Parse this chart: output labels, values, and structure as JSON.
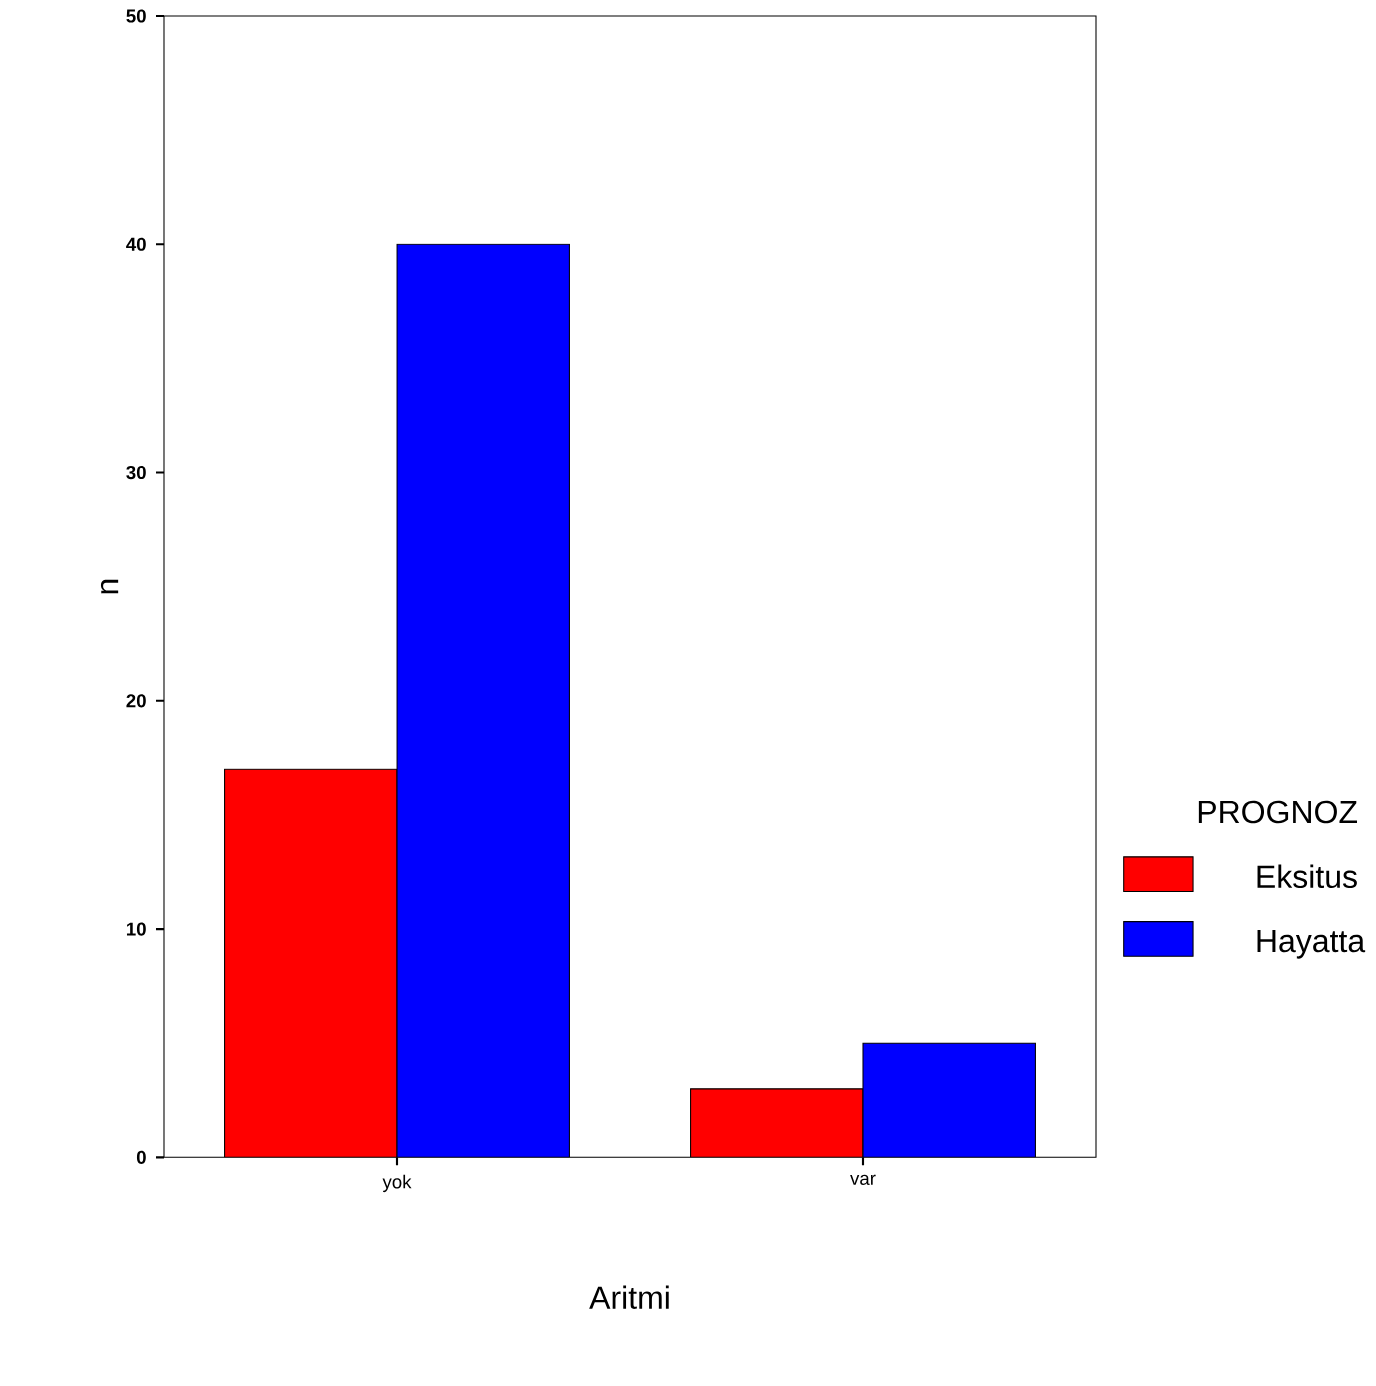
{
  "chart_data": {
    "type": "bar",
    "xlabel": "Aritmi",
    "ylabel": "n",
    "legend_title": "PROGNOZ",
    "legend": "right",
    "categories": [
      "yok",
      "var"
    ],
    "series": [
      {
        "name": "Eksitus",
        "color": "#ff0000",
        "values": [
          17,
          3
        ]
      },
      {
        "name": "Hayatta",
        "color": "#0000ff",
        "values": [
          40,
          5
        ]
      }
    ],
    "ylim": [
      0,
      50
    ],
    "yticks": [
      0,
      10,
      20,
      30,
      40,
      50
    ],
    "grid": false
  }
}
